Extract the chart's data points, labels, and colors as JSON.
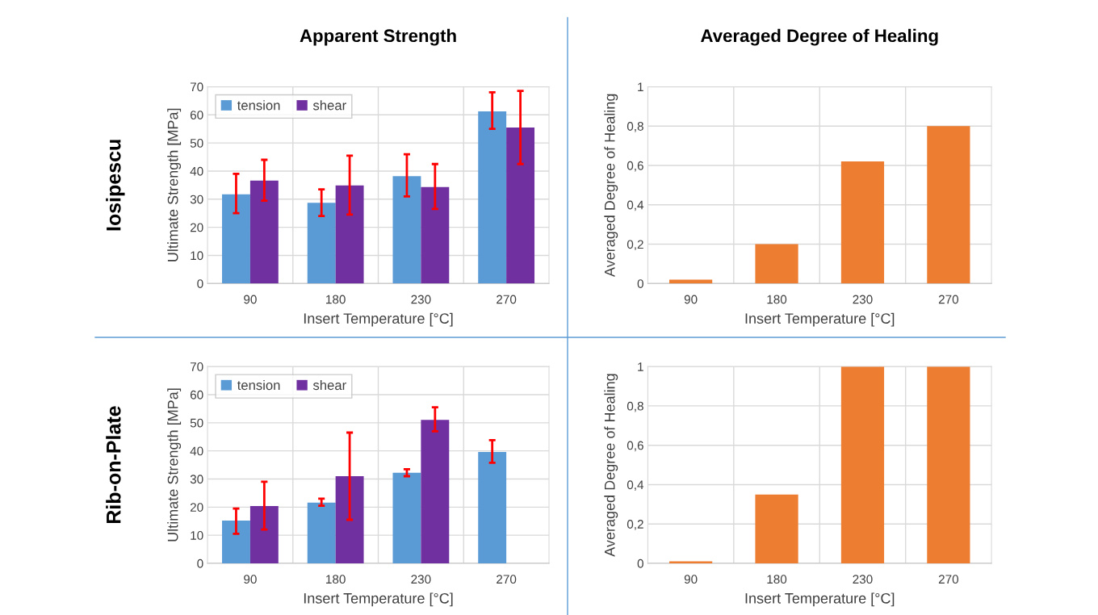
{
  "chart_data": [
    {
      "type": "bar",
      "title": "Apparent Strength",
      "annotations": [
        "Iosipescu"
      ],
      "categories": [
        "90",
        "180",
        "230",
        "270"
      ],
      "xlabel": "Insert Temperature [°C]",
      "ylabel": "Ultimate Strength [MPa]",
      "ylim": [
        0,
        70
      ],
      "yticks": [
        0,
        10,
        20,
        30,
        40,
        50,
        60,
        70
      ],
      "grid": true,
      "legend": "top left",
      "series": [
        {
          "name": "tension",
          "color": "#5b9bd5",
          "values": [
            31.7,
            28.7,
            38.2,
            61.2
          ],
          "errors": [
            [
              25,
              39
            ],
            [
              24,
              33.5
            ],
            [
              31,
              46
            ],
            [
              55,
              68
            ]
          ]
        },
        {
          "name": "shear",
          "color": "#7030a0",
          "values": [
            36.6,
            34.9,
            34.3,
            55.5
          ],
          "errors": [
            [
              29.5,
              44
            ],
            [
              24.5,
              45.5
            ],
            [
              26.5,
              42.5
            ],
            [
              42.5,
              68.5
            ]
          ]
        }
      ]
    },
    {
      "type": "bar",
      "title": "Averaged Degree of Healing",
      "categories": [
        "90",
        "180",
        "230",
        "270"
      ],
      "xlabel": "Insert Temperature [°C]",
      "ylabel": "Averaged Degree of Healing",
      "ylim": [
        0,
        1
      ],
      "yticks": [
        0,
        {
          "value": 0.2,
          "label": "0,2"
        },
        {
          "value": 0.4,
          "label": "0,4"
        },
        {
          "value": 0.6,
          "label": "0,6"
        },
        {
          "value": 0.8,
          "label": "0,8"
        },
        1
      ],
      "grid": true,
      "series": [
        {
          "color": "#ed7d31",
          "values": [
            0.02,
            0.2,
            0.62,
            0.8
          ]
        }
      ]
    },
    {
      "type": "bar",
      "annotations": [
        "Rib-on-Plate"
      ],
      "categories": [
        "90",
        "180",
        "230",
        "270"
      ],
      "xlabel": "Insert Temperature [°C]",
      "ylabel": "Ultimate Strength [MPa]",
      "ylim": [
        0,
        70
      ],
      "yticks": [
        0,
        10,
        20,
        30,
        40,
        50,
        60,
        70
      ],
      "grid": true,
      "legend": "top left",
      "series": [
        {
          "name": "tension",
          "color": "#5b9bd5",
          "values": [
            15.2,
            21.6,
            32.2,
            39.6
          ],
          "errors": [
            [
              10.5,
              19.5
            ],
            [
              20.5,
              23
            ],
            [
              31,
              33.5
            ],
            [
              35.8,
              43.8
            ]
          ]
        },
        {
          "name": "shear",
          "color": "#7030a0",
          "values": [
            20.4,
            31,
            51,
            null
          ],
          "errors": [
            [
              12,
              29
            ],
            [
              15.5,
              46.5
            ],
            [
              47,
              55.5
            ],
            null
          ]
        }
      ]
    },
    {
      "type": "bar",
      "categories": [
        "90",
        "180",
        "230",
        "270"
      ],
      "xlabel": "Insert Temperature [°C]",
      "ylabel": "Averaged Degree of Healing",
      "ylim": [
        0,
        1
      ],
      "yticks": [
        0,
        {
          "value": 0.2,
          "label": "0,2"
        },
        {
          "value": 0.4,
          "label": "0,4"
        },
        {
          "value": 0.6,
          "label": "0,6"
        },
        {
          "value": 0.8,
          "label": "0,8"
        },
        1
      ],
      "grid": true,
      "series": [
        {
          "color": "#ed7d31",
          "values": [
            0.01,
            0.35,
            1,
            1
          ]
        }
      ]
    }
  ]
}
